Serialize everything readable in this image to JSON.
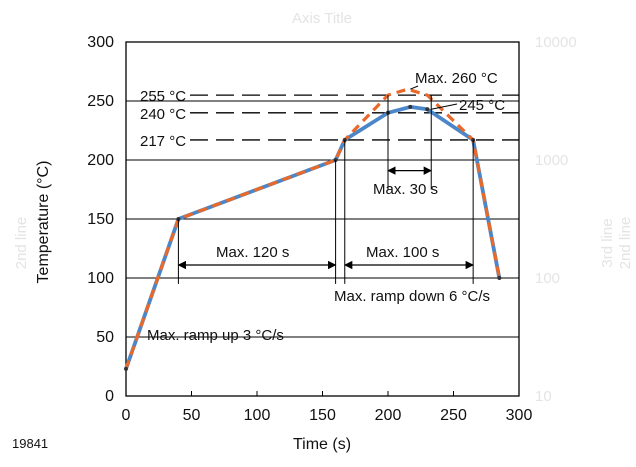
{
  "chart_data": {
    "type": "line",
    "title": "Axis Title",
    "xlabel": "Time (s)",
    "ylabel": "Temperature (°C)",
    "y2label_line1": "2nd line",
    "y3label_line1": "3rd line",
    "y3label_line2": "2nd line",
    "figure_id": "19841",
    "xlim": [
      0,
      300
    ],
    "ylim": [
      0,
      300
    ],
    "x_ticks": [
      "0",
      "50",
      "100",
      "150",
      "200",
      "250",
      "300"
    ],
    "y_ticks": [
      "0",
      "50",
      "100",
      "150",
      "200",
      "250",
      "300"
    ],
    "y_right_ticks": [
      "10",
      "100",
      "1000",
      "10000"
    ],
    "grid": true,
    "colors": {
      "series_solid": "#4a86c8",
      "series_dashed": "#e8692a",
      "axes": "#000000",
      "faint_text": "#e4e4e4"
    },
    "series": [
      {
        "style": "solid",
        "x": [
          0,
          40,
          160,
          167,
          200,
          217,
          230,
          265,
          285
        ],
        "y": [
          23,
          150,
          200,
          217,
          240,
          245,
          243,
          217,
          100
        ]
      },
      {
        "style": "dashed",
        "x": [
          0,
          40,
          160,
          167,
          200,
          215,
          230,
          265,
          285
        ],
        "y": [
          23,
          150,
          200,
          217,
          255,
          260,
          255,
          217,
          100
        ]
      }
    ],
    "reference_lines": [
      {
        "label": "255 °C",
        "y": 255
      },
      {
        "label": "240 °C",
        "y": 240
      },
      {
        "label": "217 °C",
        "y": 217
      }
    ],
    "annotations": {
      "max_260": "Max. 260 °C",
      "val_245": "245 °C",
      "max_30s": "Max. 30 s",
      "max_120s": "Max. 120 s",
      "max_100s": "Max. 100 s",
      "ramp_up": "Max. ramp up 3 °C/s",
      "ramp_down": "Max. ramp down 6 °C/s"
    }
  }
}
